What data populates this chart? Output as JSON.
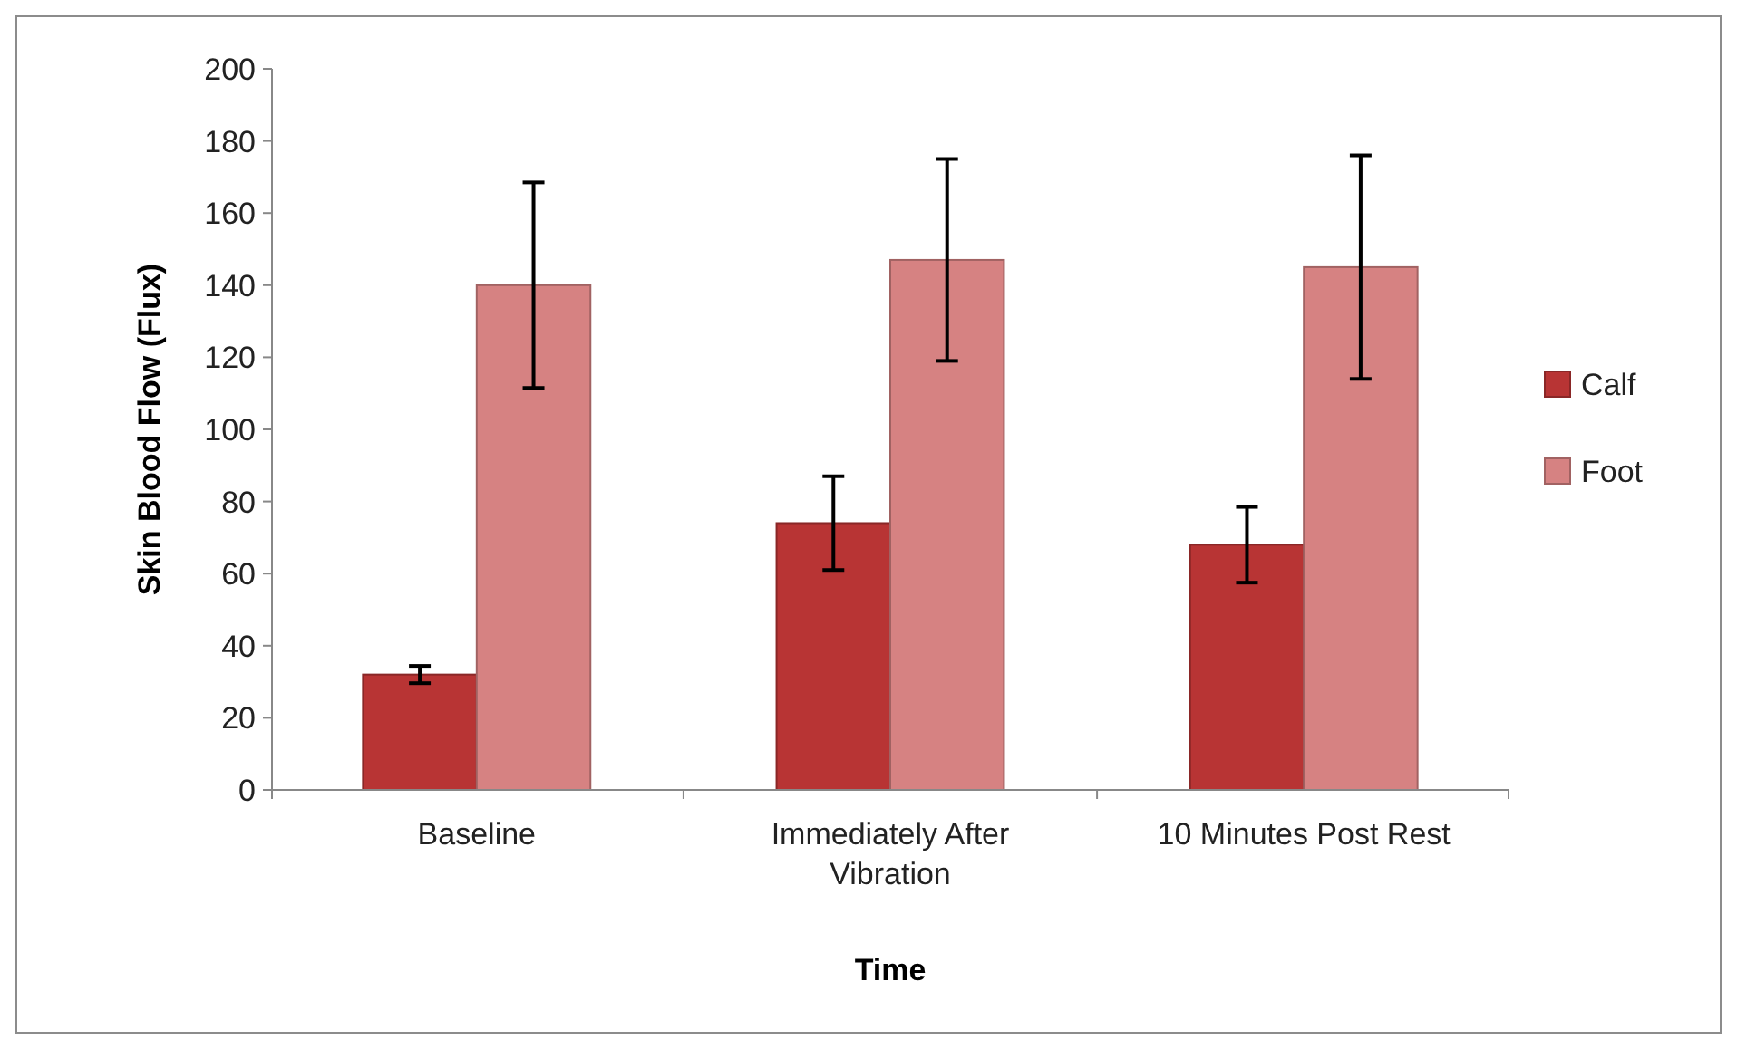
{
  "chart_data": {
    "type": "bar",
    "xlabel": "Time",
    "ylabel": "Skin Blood Flow (Flux)",
    "categories": [
      "Baseline",
      "Immediately After Vibration",
      "10 Minutes Post Rest"
    ],
    "series": [
      {
        "name": "Calf",
        "color": "#b83434",
        "values": [
          32,
          74,
          68
        ],
        "errors": [
          2.4,
          13,
          10.5
        ]
      },
      {
        "name": "Foot",
        "color": "#d68282",
        "values": [
          140,
          147,
          145
        ],
        "errors": [
          28.5,
          28,
          31
        ]
      }
    ],
    "ylim": [
      0,
      200
    ],
    "yticks": [
      0,
      20,
      40,
      60,
      80,
      100,
      120,
      140,
      160,
      180,
      200
    ],
    "grid": false,
    "legend": "right"
  }
}
